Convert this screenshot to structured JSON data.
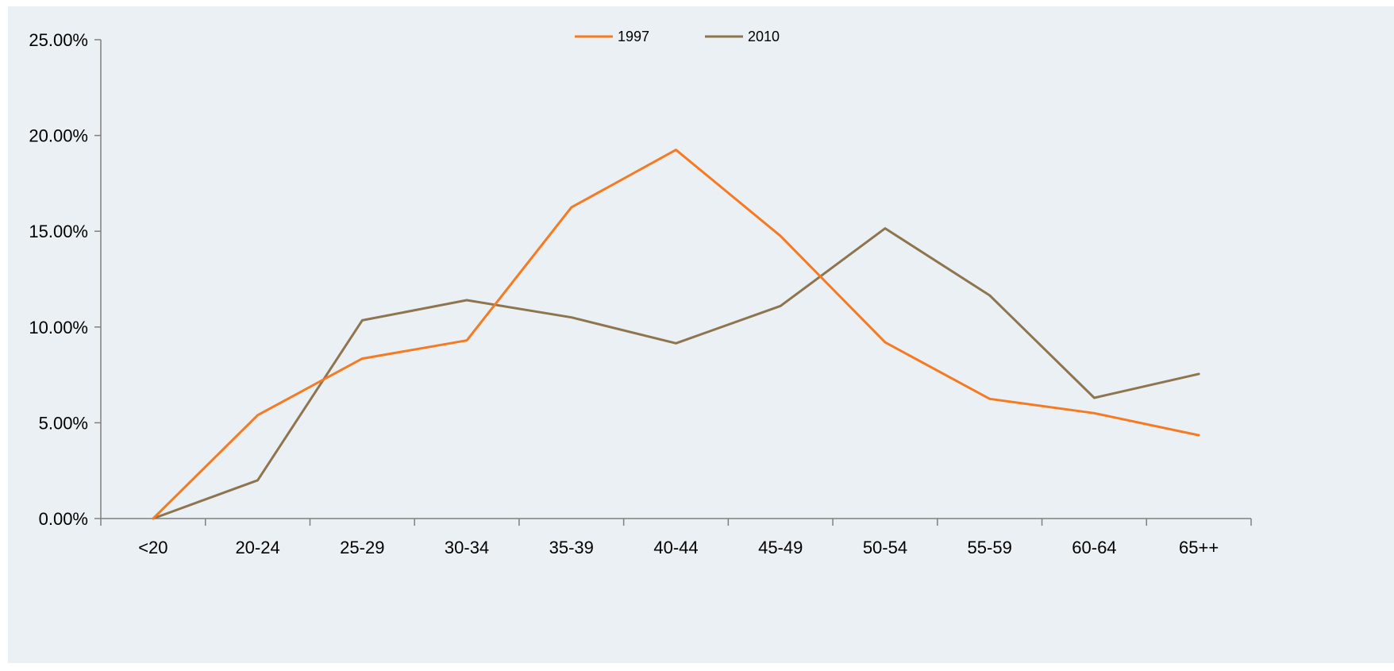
{
  "chart_data": {
    "type": "line",
    "categories": [
      "<20",
      "20-24",
      "25-29",
      "30-34",
      "35-39",
      "40-44",
      "45-49",
      "50-54",
      "55-59",
      "60-64",
      "65++"
    ],
    "series": [
      {
        "name": "1997",
        "values": [
          0.0,
          5.4,
          8.35,
          9.3,
          16.25,
          19.25,
          14.75,
          9.2,
          6.25,
          5.5,
          4.35
        ]
      },
      {
        "name": "2010",
        "values": [
          0.0,
          2.0,
          10.35,
          11.4,
          10.5,
          9.15,
          11.1,
          15.15,
          11.65,
          6.3,
          7.55
        ]
      }
    ],
    "y_ticks": [
      "0.00%",
      "5.00%",
      "10.00%",
      "15.00%",
      "20.00%",
      "25.00%"
    ],
    "ylim": [
      0,
      25
    ],
    "grid": false,
    "legend_position": "top-center",
    "colors": {
      "plot_background": "#EAF0F3",
      "axis": "#808080",
      "series_1997": "#F57A22",
      "series_2010": "#8E7550"
    }
  }
}
